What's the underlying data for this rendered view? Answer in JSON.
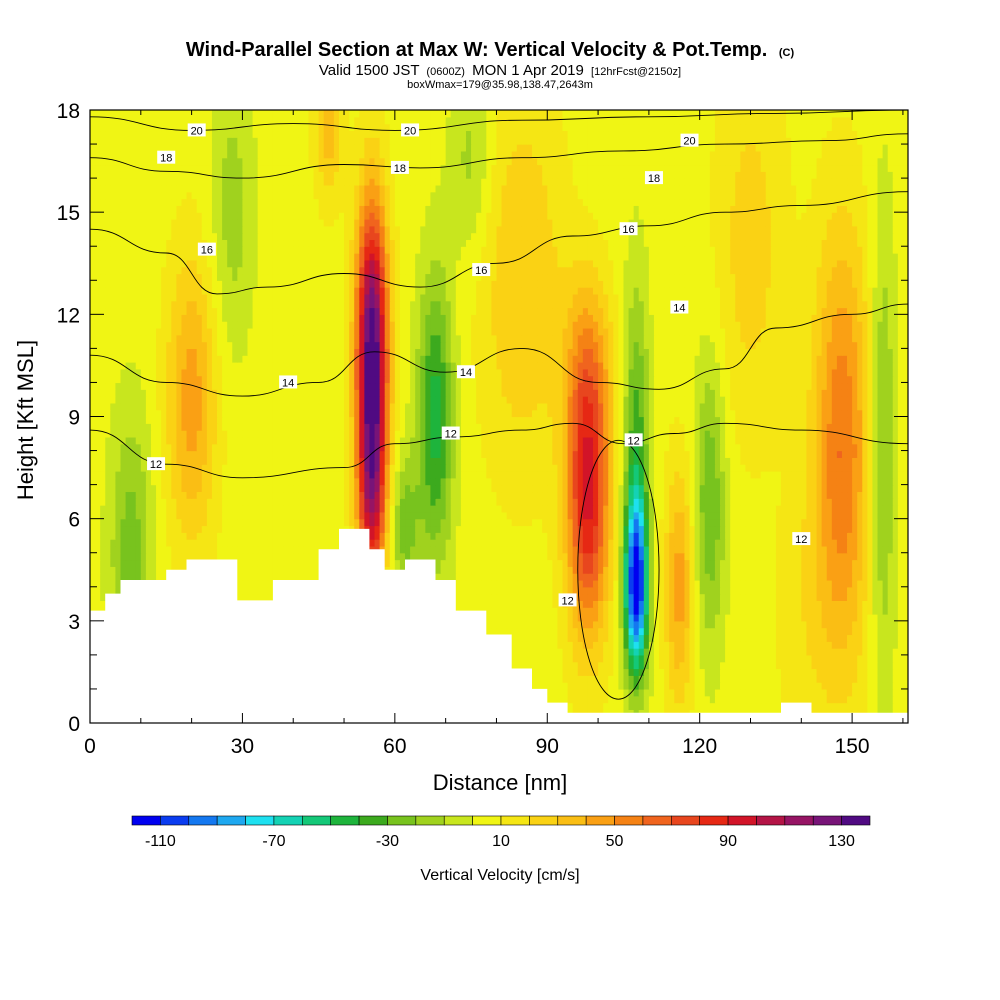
{
  "title": {
    "main": "Wind-Parallel Section at Max W: Vertical Velocity & Pot.Temp.",
    "copyright": "(C)",
    "valid_prefix": "Valid 1500 JST",
    "valid_utc": "(0600Z)",
    "valid_date": "MON 1 Apr 2019",
    "forecast": "[12hrFcst@2150z]",
    "box_info": "boxWmax=179@35.98,138.47,2643m"
  },
  "chart_data": {
    "type": "heatmap",
    "xlabel": "Distance [nm]",
    "ylabel": "Height [Kft MSL]",
    "xlim": [
      0,
      161
    ],
    "ylim": [
      0,
      18
    ],
    "x_ticks": [
      0,
      30,
      60,
      90,
      120,
      150
    ],
    "x_tick_labels": [
      "0",
      "30",
      "60",
      "90",
      "120",
      "150"
    ],
    "y_ticks": [
      0,
      3,
      6,
      9,
      12,
      15,
      18
    ],
    "y_tick_labels": [
      "0",
      "3",
      "6",
      "9",
      "12",
      "15",
      "18"
    ],
    "colorbar": {
      "title": "Vertical Velocity [cm/s]",
      "min": -120,
      "max": 140,
      "step": 10,
      "tick_values": [
        -110,
        -70,
        -30,
        10,
        50,
        90,
        130
      ],
      "tick_labels": [
        "-110",
        "-70",
        "-30",
        "10",
        "50",
        "90",
        "130"
      ],
      "colors": [
        "#0000f0",
        "#0a3cf0",
        "#1478f0",
        "#1ea8f0",
        "#1ee0f0",
        "#14d2b4",
        "#14c878",
        "#1eb43c",
        "#3caa1e",
        "#78c31e",
        "#a0d21e",
        "#c8e61e",
        "#f0f514",
        "#f5e614",
        "#fad214",
        "#fabe14",
        "#faa014",
        "#f58214",
        "#f0641e",
        "#e8461e",
        "#e62814",
        "#d21428",
        "#b41446",
        "#961464",
        "#781478",
        "#500a82"
      ]
    },
    "terrain": [
      {
        "x": 0,
        "h": 3.3
      },
      {
        "x": 3,
        "h": 3.8
      },
      {
        "x": 6,
        "h": 4.2
      },
      {
        "x": 15,
        "h": 4.5
      },
      {
        "x": 19,
        "h": 4.8
      },
      {
        "x": 29,
        "h": 3.6
      },
      {
        "x": 36,
        "h": 4.2
      },
      {
        "x": 45,
        "h": 5.1
      },
      {
        "x": 49,
        "h": 5.7
      },
      {
        "x": 55,
        "h": 5.1
      },
      {
        "x": 58,
        "h": 4.5
      },
      {
        "x": 62,
        "h": 4.8
      },
      {
        "x": 68,
        "h": 4.2
      },
      {
        "x": 72,
        "h": 3.3
      },
      {
        "x": 78,
        "h": 2.6
      },
      {
        "x": 83,
        "h": 1.6
      },
      {
        "x": 87,
        "h": 1.0
      },
      {
        "x": 90,
        "h": 0.6
      },
      {
        "x": 94,
        "h": 0.3
      },
      {
        "x": 136,
        "h": 0.6
      },
      {
        "x": 142,
        "h": 0.3
      },
      {
        "x": 161,
        "h": 0.3
      }
    ],
    "velocity_features": [
      {
        "x": 55.5,
        "z": 11.0,
        "w": 135,
        "sx": 2.2,
        "sz": 3.0
      },
      {
        "x": 55.5,
        "z": 6.5,
        "w": 70,
        "sx": 2.0,
        "sz": 2.0
      },
      {
        "x": 98,
        "z": 6.5,
        "w": 85,
        "sx": 3.0,
        "sz": 2.8
      },
      {
        "x": 98,
        "z": 10.5,
        "w": 30,
        "sx": 3.5,
        "sz": 2.0
      },
      {
        "x": 107.5,
        "z": 4.0,
        "w": -110,
        "sx": 1.6,
        "sz": 1.8
      },
      {
        "x": 107.5,
        "z": 8.0,
        "w": -40,
        "sx": 1.8,
        "sz": 3.5
      },
      {
        "x": 116,
        "z": 4.0,
        "w": 40,
        "sx": 2.0,
        "sz": 2.5
      },
      {
        "x": 122,
        "z": 6.5,
        "w": -35,
        "sx": 2.2,
        "sz": 3.0
      },
      {
        "x": 148,
        "z": 8.0,
        "w": 55,
        "sx": 4.0,
        "sz": 4.5
      },
      {
        "x": 156,
        "z": 8.0,
        "w": -30,
        "sx": 1.8,
        "sz": 5.0
      },
      {
        "x": 20,
        "z": 9.5,
        "w": 40,
        "sx": 3.5,
        "sz": 3.0
      },
      {
        "x": 68,
        "z": 9.0,
        "w": -50,
        "sx": 2.5,
        "sz": 3.0
      },
      {
        "x": 62,
        "z": 5.8,
        "w": -30,
        "sx": 2.0,
        "sz": 1.5
      },
      {
        "x": 85,
        "z": 13.0,
        "w": 25,
        "sx": 6.0,
        "sz": 4.0
      },
      {
        "x": 28,
        "z": 15.0,
        "w": -20,
        "sx": 3.0,
        "sz": 3.0
      },
      {
        "x": 8,
        "z": 5.0,
        "w": -30,
        "sx": 3.0,
        "sz": 3.0
      },
      {
        "x": 47,
        "z": 17.5,
        "w": 30,
        "sx": 2.0,
        "sz": 1.5
      },
      {
        "x": 75,
        "z": 16.5,
        "w": -20,
        "sx": 3.0,
        "sz": 2.0
      },
      {
        "x": 130,
        "z": 14.0,
        "w": 20,
        "sx": 5.0,
        "sz": 4.0
      },
      {
        "x": 140,
        "z": 3.0,
        "w": 10,
        "sx": 4.0,
        "sz": 3.0
      }
    ],
    "background_w": 5,
    "theta_contours": [
      {
        "level": "12",
        "points": [
          [
            0,
            8.6
          ],
          [
            15,
            7.6
          ],
          [
            30,
            7.2
          ],
          [
            50,
            7.5
          ],
          [
            60,
            8.2
          ],
          [
            72,
            8.4
          ],
          [
            85,
            8.6
          ],
          [
            95,
            8.8
          ],
          [
            105,
            8.2
          ],
          [
            115,
            8.5
          ],
          [
            125,
            8.8
          ],
          [
            140,
            8.6
          ],
          [
            161,
            8.2
          ]
        ]
      },
      {
        "level": "14",
        "points": [
          [
            0,
            10.8
          ],
          [
            15,
            10.0
          ],
          [
            30,
            9.6
          ],
          [
            45,
            10.0
          ],
          [
            56,
            10.9
          ],
          [
            70,
            10.3
          ],
          [
            85,
            11.0
          ],
          [
            100,
            10.0
          ],
          [
            112,
            9.8
          ],
          [
            125,
            10.4
          ],
          [
            135,
            11.6
          ],
          [
            150,
            12.0
          ],
          [
            161,
            12.3
          ]
        ]
      },
      {
        "level": "16",
        "points": [
          [
            0,
            14.5
          ],
          [
            15,
            13.8
          ],
          [
            25,
            12.6
          ],
          [
            35,
            12.8
          ],
          [
            50,
            13.2
          ],
          [
            65,
            12.8
          ],
          [
            80,
            13.5
          ],
          [
            95,
            14.3
          ],
          [
            110,
            14.6
          ],
          [
            125,
            15.0
          ],
          [
            140,
            15.2
          ],
          [
            161,
            15.6
          ]
        ]
      },
      {
        "level": "18",
        "points": [
          [
            0,
            16.6
          ],
          [
            15,
            16.2
          ],
          [
            30,
            16.0
          ],
          [
            50,
            16.4
          ],
          [
            65,
            16.3
          ],
          [
            85,
            16.6
          ],
          [
            105,
            16.8
          ],
          [
            125,
            17.0
          ],
          [
            145,
            17.1
          ],
          [
            161,
            17.3
          ]
        ]
      },
      {
        "level": "20",
        "points": [
          [
            0,
            17.8
          ],
          [
            20,
            17.4
          ],
          [
            40,
            17.6
          ],
          [
            60,
            17.4
          ],
          [
            85,
            17.7
          ],
          [
            110,
            17.8
          ],
          [
            135,
            17.9
          ],
          [
            161,
            18.0
          ]
        ]
      }
    ],
    "contour_labels": [
      {
        "text": "20",
        "x": 21,
        "z": 17.4
      },
      {
        "text": "20",
        "x": 63,
        "z": 17.4
      },
      {
        "text": "20",
        "x": 118,
        "z": 17.1
      },
      {
        "text": "18",
        "x": 15,
        "z": 16.6
      },
      {
        "text": "18",
        "x": 61,
        "z": 16.3
      },
      {
        "text": "18",
        "x": 111,
        "z": 16.0
      },
      {
        "text": "16",
        "x": 23,
        "z": 13.9
      },
      {
        "text": "16",
        "x": 77,
        "z": 13.3
      },
      {
        "text": "16",
        "x": 106,
        "z": 14.5
      },
      {
        "text": "14",
        "x": 39,
        "z": 10.0
      },
      {
        "text": "14",
        "x": 74,
        "z": 10.3
      },
      {
        "text": "14",
        "x": 116,
        "z": 12.2
      },
      {
        "text": "12",
        "x": 13,
        "z": 7.6
      },
      {
        "text": "12",
        "x": 71,
        "z": 8.5
      },
      {
        "text": "12",
        "x": 107,
        "z": 8.3
      },
      {
        "text": "12",
        "x": 140,
        "z": 5.4
      },
      {
        "text": "12",
        "x": 94,
        "z": 3.6
      }
    ]
  }
}
